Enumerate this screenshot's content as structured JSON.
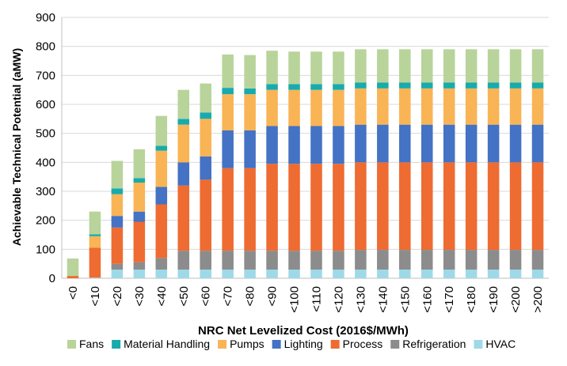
{
  "chart_data": {
    "type": "bar",
    "stacked": true,
    "title": "",
    "xlabel": "NRC Net Levelized Cost (2016$/MWh)",
    "ylabel": "Achievable Technical  Potential (aMW)",
    "ylim": [
      0,
      900
    ],
    "yticks": [
      0,
      100,
      200,
      300,
      400,
      500,
      600,
      700,
      800,
      900
    ],
    "grid": true,
    "legend_position": "bottom",
    "categories": [
      "<0",
      "<10",
      "<20",
      "<30",
      "<40",
      "<50",
      "<60",
      "<70",
      "<80",
      "<90",
      "<100",
      "<110",
      "<120",
      "<130",
      "<140",
      "<150",
      "<160",
      "<170",
      "<180",
      "<190",
      "<200",
      ">200"
    ],
    "series": [
      {
        "name": "HVAC",
        "color": "#9fd9e8",
        "values": [
          0,
          2,
          30,
          30,
          30,
          30,
          30,
          30,
          30,
          30,
          30,
          30,
          30,
          30,
          30,
          30,
          30,
          30,
          30,
          30,
          30,
          30
        ]
      },
      {
        "name": "Refrigeration",
        "color": "#8c8c8c",
        "values": [
          0,
          0,
          20,
          25,
          40,
          65,
          65,
          65,
          65,
          65,
          65,
          65,
          65,
          68,
          68,
          68,
          68,
          68,
          68,
          68,
          68,
          68
        ]
      },
      {
        "name": "Process",
        "color": "#ee6b32",
        "values": [
          8,
          103,
          125,
          140,
          185,
          225,
          245,
          285,
          285,
          300,
          300,
          300,
          300,
          302,
          302,
          302,
          302,
          302,
          302,
          302,
          302,
          302
        ]
      },
      {
        "name": "Lighting",
        "color": "#4472c4",
        "values": [
          0,
          0,
          40,
          35,
          60,
          80,
          80,
          130,
          130,
          130,
          130,
          130,
          130,
          130,
          130,
          130,
          130,
          130,
          130,
          130,
          130,
          130
        ]
      },
      {
        "name": "Pumps",
        "color": "#f9b455",
        "values": [
          0,
          40,
          75,
          100,
          125,
          130,
          130,
          125,
          125,
          125,
          125,
          125,
          125,
          125,
          125,
          125,
          125,
          125,
          125,
          125,
          125,
          125
        ]
      },
      {
        "name": "Material Handling",
        "color": "#18abad",
        "values": [
          0,
          7,
          20,
          15,
          17,
          20,
          22,
          22,
          20,
          20,
          20,
          20,
          20,
          20,
          20,
          20,
          20,
          20,
          20,
          20,
          20,
          20
        ]
      },
      {
        "name": "Fans",
        "color": "#b8d49a",
        "values": [
          60,
          78,
          95,
          100,
          103,
          100,
          100,
          115,
          115,
          115,
          112,
          112,
          112,
          115,
          115,
          115,
          115,
          115,
          115,
          115,
          115,
          115
        ]
      }
    ],
    "legend_order": [
      "Fans",
      "Material Handling",
      "Pumps",
      "Lighting",
      "Process",
      "Refrigeration",
      "HVAC"
    ]
  }
}
